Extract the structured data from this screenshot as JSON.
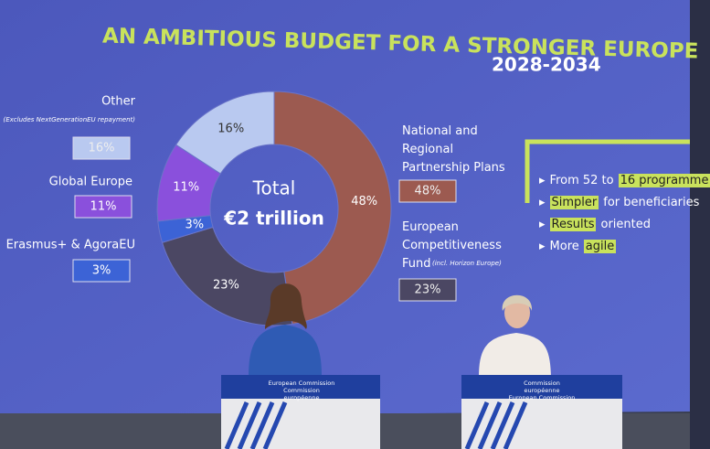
{
  "chart_data": {
    "type": "donut",
    "title": "AN AMBITIOUS BUDGET FOR A STRONGER EUROPE",
    "subtitle": "2028-2034",
    "center_label": [
      "Total",
      "€2 trillion"
    ],
    "categories": [
      "National and Regional Partnership Plans",
      "European Competitiveness Fund",
      "Erasmus+ & AgoraEU",
      "Global Europe",
      "Other"
    ],
    "category_notes": [
      null,
      "(incl. Horizon Europe)",
      null,
      null,
      "(Excludes NextGenerationEU repayment)"
    ],
    "values": [
      48,
      23,
      3,
      11,
      16
    ],
    "value_labels": [
      "48%",
      "23%",
      "3%",
      "11%",
      "16%"
    ],
    "colors": [
      "#9c5a50",
      "#4b4763",
      "#3c63d6",
      "#8a50dc",
      "#b9c9f0"
    ]
  },
  "side_panel": {
    "items": [
      {
        "lead": "From 52 to",
        "highlight": "16 programme"
      },
      {
        "highlight": "Simpler",
        "rest": "for beneficiaries"
      },
      {
        "highlight": "Results",
        "rest": "oriented"
      },
      {
        "lead": "More",
        "highlight": "agile"
      }
    ]
  },
  "podiums": [
    {
      "line1": "European Commission",
      "line2": "Commission européenne"
    },
    {
      "line1": "Commission européenne",
      "line2": "European Commission"
    }
  ]
}
